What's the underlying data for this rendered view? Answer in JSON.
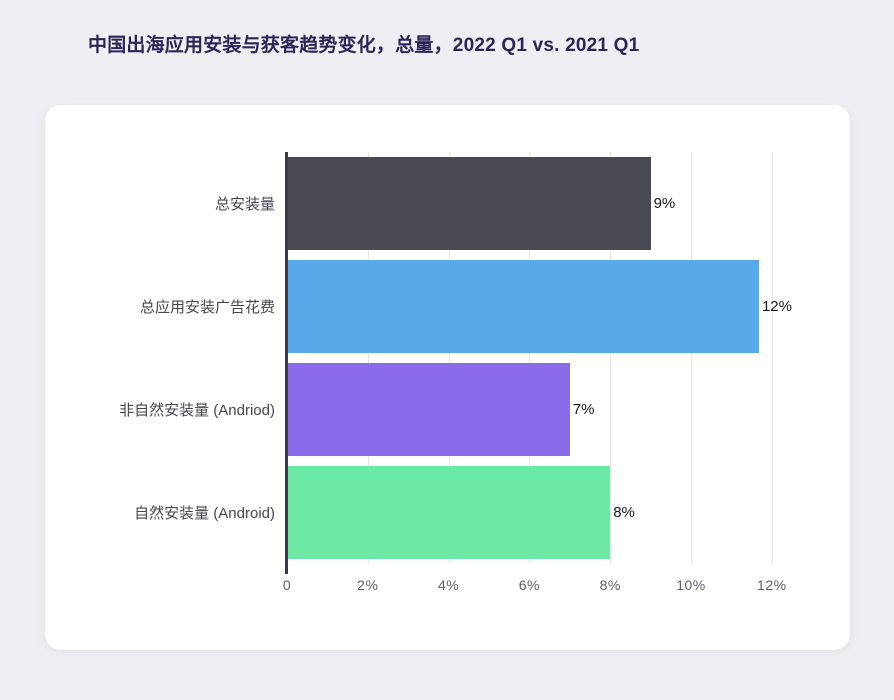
{
  "page": {
    "title": "中国出海应用安装与获客趋势变化，总量，2022 Q1 vs. 2021 Q1"
  },
  "chart_data": {
    "type": "bar",
    "orientation": "horizontal",
    "title": "中国出海应用安装与获客趋势变化，总量，2022 Q1 vs. 2021 Q1",
    "categories": [
      "总安装量",
      "总应用安装广告花费",
      "非自然安装量 (Andriod)",
      "自然安装量 (Android)"
    ],
    "values": [
      9,
      12,
      7,
      8
    ],
    "value_labels": [
      "9%",
      "12%",
      "7%",
      "8%"
    ],
    "bar_colors": [
      "#4a4a55",
      "#57a9ea",
      "#8a6cea",
      "#6ce9a4"
    ],
    "x_ticks": [
      0,
      2,
      4,
      6,
      8,
      10,
      12
    ],
    "x_tick_labels": [
      "0",
      "2%",
      "4%",
      "6%",
      "8%",
      "10%",
      "12%"
    ],
    "xlim": [
      0,
      12.5
    ],
    "xlabel": "",
    "ylabel": "",
    "grid": true,
    "legend": "none"
  },
  "colors": {
    "page_bg": "#edeff3",
    "card_bg": "#ffffff",
    "title_text": "#2b2659",
    "category_text": "#46474d",
    "tick_text": "#5d5e66",
    "value_text": "#17171c",
    "axis_line": "#3a3a44",
    "grid_line": "#e5e6ea"
  }
}
